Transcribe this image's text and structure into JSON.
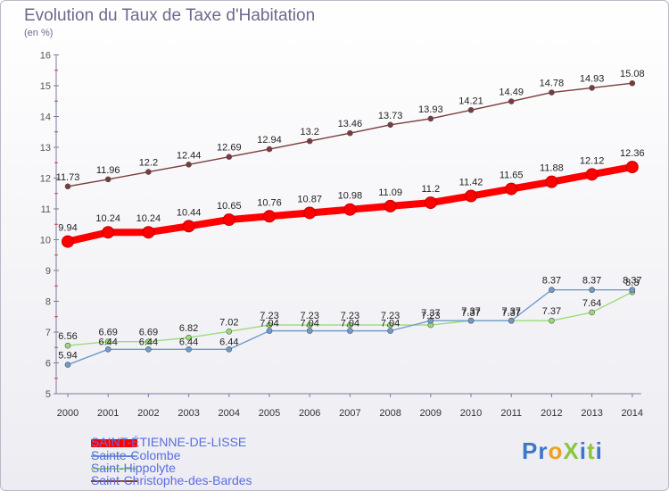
{
  "chart_data": {
    "type": "line",
    "title": "Evolution du Taux de Taxe d'Habitation",
    "subtitle": "(en %)",
    "x": [
      "2000",
      "2001",
      "2002",
      "2003",
      "2004",
      "2005",
      "2006",
      "2007",
      "2008",
      "2009",
      "2010",
      "2011",
      "2012",
      "2013",
      "2014"
    ],
    "ylim": [
      5,
      16
    ],
    "yticks": [
      "5",
      "6",
      "7",
      "8",
      "9",
      "10",
      "11",
      "12",
      "13",
      "14",
      "15",
      "16"
    ],
    "series": [
      {
        "name": "SAINT-ÉTIENNE-DE-LISSE",
        "color": "#ff0000",
        "values": [
          9.94,
          10.24,
          10.24,
          10.44,
          10.65,
          10.76,
          10.87,
          10.98,
          11.09,
          11.2,
          11.42,
          11.65,
          11.88,
          12.12,
          12.36
        ],
        "labels": [
          "9.94",
          "10.24",
          "10.24",
          "10.44",
          "10.65",
          "10.76",
          "10.87",
          "10.98",
          "11.09",
          "11.2",
          "11.42",
          "11.65",
          "11.88",
          "12.12",
          "12.36"
        ]
      },
      {
        "name": "Sainte-Colombe",
        "color": "#6f9ccd",
        "values": [
          5.94,
          6.44,
          6.44,
          6.44,
          6.44,
          7.04,
          7.04,
          7.04,
          7.04,
          7.37,
          7.37,
          7.37,
          8.37,
          8.37,
          8.37
        ],
        "labels": [
          "5.94",
          "6.44",
          "6.44",
          "6.44",
          "6.44",
          "7.04",
          "7.04",
          "7.04",
          "7.04",
          "7.37",
          "7.37",
          "7.37",
          "8.37",
          "8.37",
          "8.37"
        ]
      },
      {
        "name": "Saint-Hippolyte",
        "color": "#9bdb7a",
        "values": [
          6.56,
          6.69,
          6.69,
          6.82,
          7.02,
          7.23,
          7.23,
          7.23,
          7.23,
          7.23,
          7.37,
          7.37,
          7.37,
          7.64,
          8.3
        ],
        "labels": [
          "6.56",
          "6.69",
          "6.69",
          "6.82",
          "7.02",
          "7.23",
          "7.23",
          "7.23",
          "7.23",
          "7.23",
          "7.37",
          "7.37",
          "7.37",
          "7.64",
          "8.3"
        ]
      },
      {
        "name": "Saint-Christophe-des-Bardes",
        "color": "#7b3b3b",
        "values": [
          11.73,
          11.96,
          12.2,
          12.44,
          12.69,
          12.94,
          13.2,
          13.46,
          13.73,
          13.93,
          14.21,
          14.49,
          14.78,
          14.93,
          15.08
        ],
        "labels": [
          "11.73",
          "11.96",
          "12.2",
          "12.44",
          "12.69",
          "12.94",
          "13.2",
          "13.46",
          "13.73",
          "13.93",
          "14.21",
          "14.49",
          "14.78",
          "14.93",
          "15.08"
        ]
      }
    ]
  },
  "logo": {
    "text": "ProXiti"
  }
}
